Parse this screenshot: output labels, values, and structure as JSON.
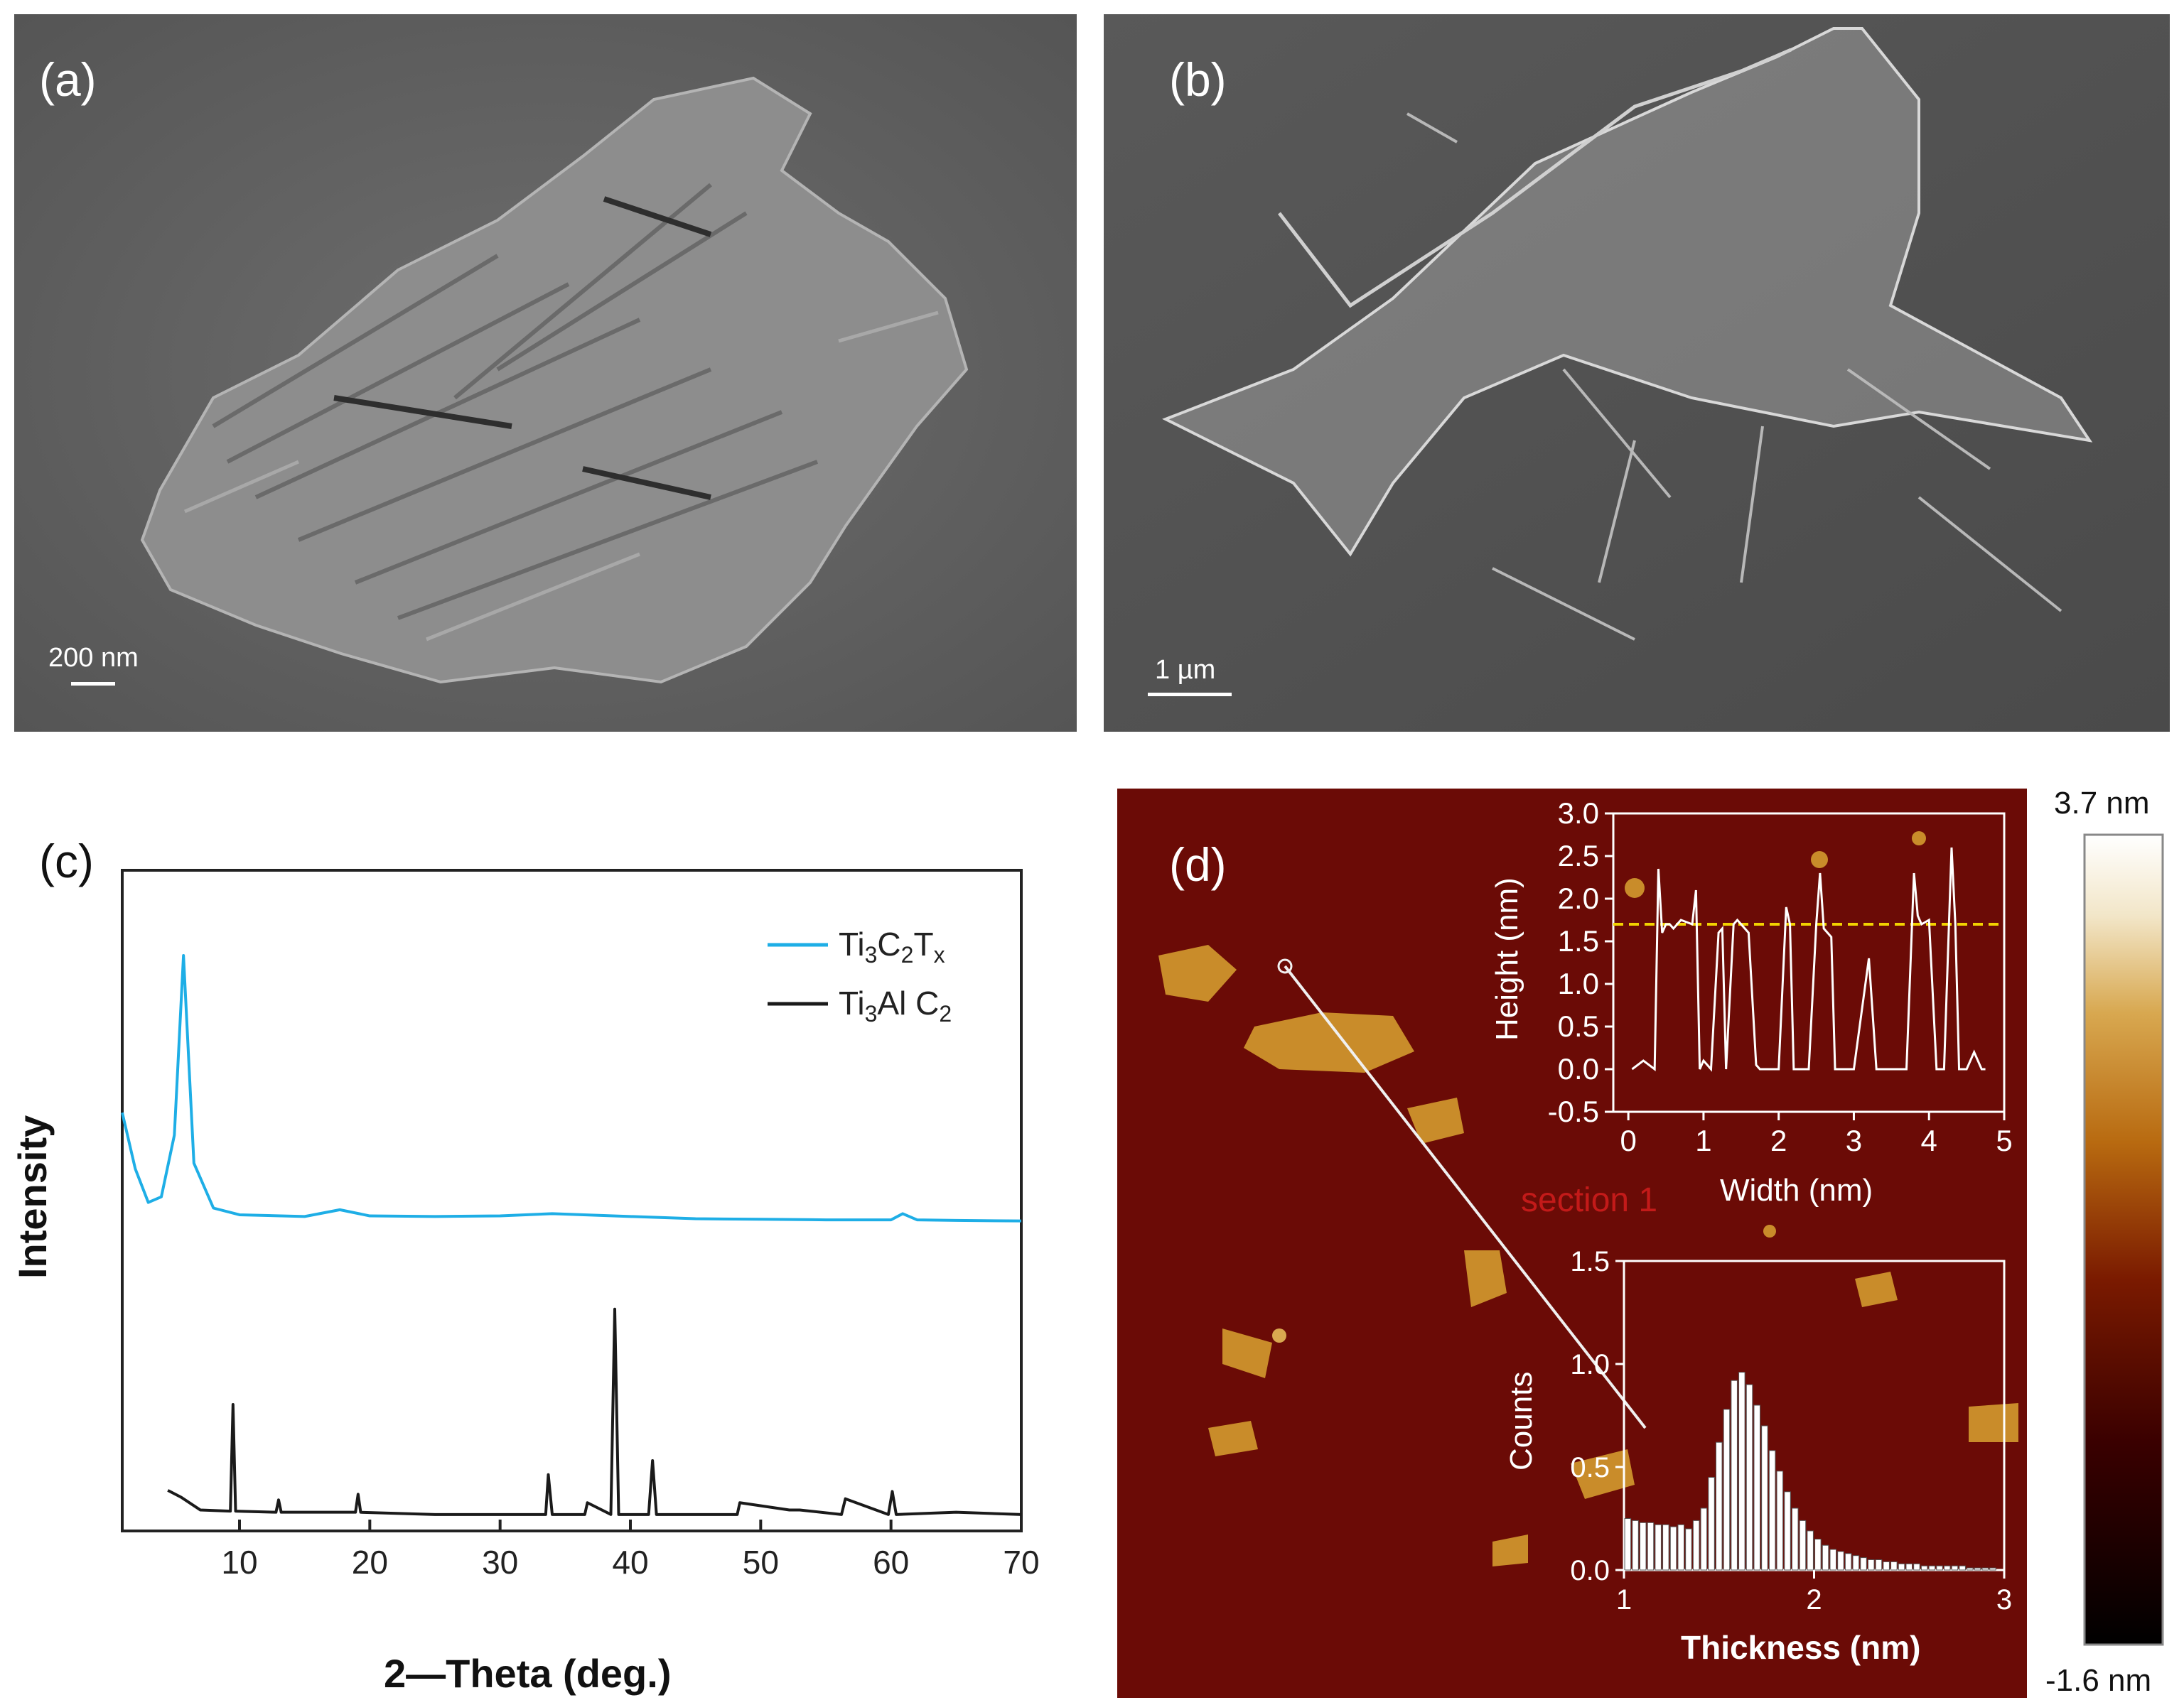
{
  "panels": {
    "a": {
      "label": "(a)",
      "scale_bar": "200 nm"
    },
    "b": {
      "label": "(b)",
      "scale_bar": "1 µm"
    },
    "c": {
      "label": "(c)"
    },
    "d": {
      "label": "(d)",
      "section_label": "section 1",
      "colorbar": {
        "max_label": "3.7 nm",
        "min_label": "-1.6 nm",
        "colors": [
          "#000000",
          "#3a0000",
          "#7a1a00",
          "#b86a10",
          "#d8a850",
          "#f2e6c8",
          "#ffffff"
        ]
      }
    }
  },
  "colors": {
    "ti3c2tx": "#1eaee6",
    "ti3alc2": "#1a1a1a",
    "threshold": "#f2d200",
    "afm_bg": "#6b0b06",
    "flake": "#c98c2a"
  },
  "chart_data": [
    {
      "type": "line",
      "panel": "c",
      "xlabel": "2—Theta (deg.)",
      "ylabel": "Intensity",
      "xlim": [
        1,
        70
      ],
      "x_ticks": [
        10,
        20,
        30,
        40,
        50,
        60,
        70
      ],
      "y_ticks_shown": false,
      "legend_position": "top-right",
      "series": [
        {
          "name_parts": [
            "Ti",
            "3",
            "C",
            "2",
            "T",
            "x"
          ],
          "color": "#1eaee6",
          "x": [
            1,
            2,
            3,
            4,
            5,
            5.7,
            6.5,
            8,
            10,
            15,
            17.7,
            20,
            25,
            30,
            34,
            40,
            45,
            50,
            55,
            60,
            60.9,
            62,
            65,
            70
          ],
          "y": [
            0.72,
            0.62,
            0.56,
            0.57,
            0.68,
            1.0,
            0.63,
            0.55,
            0.538,
            0.535,
            0.547,
            0.536,
            0.535,
            0.536,
            0.54,
            0.535,
            0.531,
            0.53,
            0.529,
            0.529,
            0.54,
            0.529,
            0.528,
            0.527
          ]
        },
        {
          "name_parts": [
            "Ti",
            "3",
            "Al C",
            "2"
          ],
          "color": "#1a1a1a",
          "x": [
            4.5,
            5.5,
            7,
            9.3,
            9.5,
            9.7,
            12.8,
            13,
            13.2,
            18.9,
            19.1,
            19.3,
            25,
            33.5,
            33.7,
            34,
            36.5,
            36.7,
            38.5,
            38.8,
            39.1,
            41.4,
            41.7,
            42,
            48.2,
            48.4,
            52.2,
            53,
            56.2,
            56.5,
            59.8,
            60.1,
            60.4,
            65,
            70
          ],
          "y": [
            0.047,
            0.035,
            0.012,
            0.01,
            0.2,
            0.01,
            0.008,
            0.03,
            0.008,
            0.008,
            0.04,
            0.008,
            0.004,
            0.004,
            0.075,
            0.004,
            0.004,
            0.025,
            0.004,
            0.37,
            0.004,
            0.004,
            0.1,
            0.004,
            0.004,
            0.025,
            0.012,
            0.012,
            0.004,
            0.032,
            0.004,
            0.045,
            0.004,
            0.008,
            0.004
          ]
        }
      ]
    },
    {
      "type": "line",
      "panel": "d-inset-top",
      "xlabel": "Width (nm)",
      "ylabel": "Height (nm)",
      "xlim": [
        -0.2,
        5
      ],
      "ylim": [
        -0.5,
        3.0
      ],
      "x_ticks": [
        0,
        1,
        2,
        3,
        4,
        5
      ],
      "y_ticks": [
        -0.5,
        0.0,
        0.5,
        1.0,
        1.5,
        2.0,
        2.5,
        3.0
      ],
      "threshold_y": 1.7,
      "series": [
        {
          "color": "#ffffff",
          "x": [
            0.05,
            0.2,
            0.35,
            0.4,
            0.45,
            0.5,
            0.55,
            0.6,
            0.7,
            0.85,
            0.9,
            0.95,
            1.0,
            1.1,
            1.2,
            1.25,
            1.3,
            1.4,
            1.45,
            1.5,
            1.6,
            1.7,
            1.75,
            1.8,
            2.0,
            2.1,
            2.15,
            2.2,
            2.3,
            2.4,
            2.5,
            2.55,
            2.6,
            2.7,
            2.75,
            2.8,
            3.0,
            3.2,
            3.3,
            3.35,
            3.4,
            3.6,
            3.7,
            3.8,
            3.85,
            3.9,
            4.0,
            4.1,
            4.2,
            4.3,
            4.35,
            4.4,
            4.5,
            4.6,
            4.7,
            4.75
          ],
          "y": [
            0.0,
            0.1,
            0.0,
            2.35,
            1.6,
            1.7,
            1.7,
            1.65,
            1.75,
            1.7,
            2.1,
            0.0,
            0.1,
            0.0,
            1.6,
            1.65,
            0.0,
            1.7,
            1.75,
            1.7,
            1.6,
            0.05,
            0.0,
            0.0,
            0.0,
            1.9,
            1.7,
            0.0,
            0.0,
            0.0,
            1.7,
            2.3,
            1.65,
            1.55,
            0.0,
            0.0,
            0.0,
            1.3,
            0.0,
            0.0,
            0.0,
            0.0,
            0.0,
            2.3,
            1.8,
            1.7,
            1.75,
            0.0,
            0.0,
            2.6,
            1.7,
            0.0,
            0.0,
            0.2,
            0.0,
            0.0
          ]
        }
      ]
    },
    {
      "type": "bar",
      "panel": "d-inset-bottom",
      "xlabel": "Thickness (nm)",
      "ylabel": "Counts",
      "xlim": [
        1,
        3
      ],
      "ylim": [
        0,
        1.5
      ],
      "x_ticks": [
        1,
        2,
        3
      ],
      "y_ticks": [
        0.0,
        0.5,
        1.0,
        1.5
      ],
      "x": [
        1.02,
        1.06,
        1.1,
        1.14,
        1.18,
        1.22,
        1.26,
        1.3,
        1.34,
        1.38,
        1.42,
        1.46,
        1.5,
        1.54,
        1.58,
        1.62,
        1.66,
        1.7,
        1.74,
        1.78,
        1.82,
        1.86,
        1.9,
        1.94,
        1.98,
        2.02,
        2.06,
        2.1,
        2.14,
        2.18,
        2.22,
        2.26,
        2.3,
        2.34,
        2.38,
        2.42,
        2.46,
        2.5,
        2.54,
        2.58,
        2.62,
        2.66,
        2.7,
        2.74,
        2.78,
        2.82,
        2.86,
        2.9,
        2.94
      ],
      "values": [
        0.25,
        0.24,
        0.23,
        0.23,
        0.22,
        0.22,
        0.21,
        0.22,
        0.2,
        0.24,
        0.3,
        0.45,
        0.62,
        0.78,
        0.92,
        0.96,
        0.9,
        0.8,
        0.7,
        0.58,
        0.48,
        0.38,
        0.3,
        0.24,
        0.19,
        0.15,
        0.12,
        0.1,
        0.09,
        0.08,
        0.07,
        0.06,
        0.05,
        0.05,
        0.04,
        0.04,
        0.03,
        0.03,
        0.03,
        0.02,
        0.02,
        0.02,
        0.02,
        0.02,
        0.02,
        0.01,
        0.01,
        0.01,
        0.01
      ]
    }
  ]
}
